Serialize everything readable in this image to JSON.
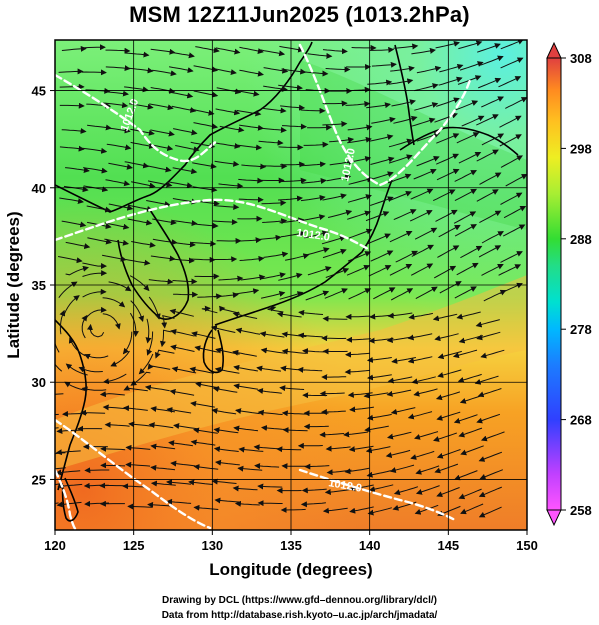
{
  "title": "MSM 12Z11Jun2025 (1013.2hPa)",
  "xlabel": "Longitude (degrees)",
  "ylabel": "Latitude  (degrees)",
  "credits": [
    "Drawing by DCL (https://www.gfd–dennou.org/library/dcl/)",
    "Data from http://database.rish.kyoto–u.ac.jp/arch/jmadata/"
  ],
  "contour_labels": [
    "1012.0",
    "1012.0",
    "1012.0",
    "1012.0"
  ],
  "chart_data": {
    "type": "heatmap",
    "title": "MSM 12Z11Jun2025 (1013.2hPa)",
    "xlabel": "Longitude (degrees)",
    "ylabel": "Latitude  (degrees)",
    "xlim": [
      120,
      150
    ],
    "ylim": [
      22.4,
      47.6
    ],
    "xticks": [
      120,
      125,
      130,
      135,
      140,
      145,
      150
    ],
    "yticks": [
      25,
      30,
      35,
      40,
      45
    ],
    "grid": true,
    "colorbar": {
      "min": 258,
      "max": 308,
      "ticks": [
        258,
        268,
        278,
        288,
        298,
        308
      ],
      "colors": [
        "#ff55ff",
        "#c040ff",
        "#5050ff",
        "#1c7cff",
        "#00b8ff",
        "#00e0d0",
        "#22dd88",
        "#33dd33",
        "#99ee33",
        "#eeee22",
        "#ffc020",
        "#ff9020",
        "#ff5a30",
        "#e04040"
      ]
    },
    "field_note_colors": {
      "north": "#5fe26f",
      "central": "#3fdc3f",
      "south": "#f59a1d",
      "southwest": "#ef6f1f",
      "far_south": "#e7782a"
    },
    "contour_color": "#ffffff",
    "vector_color": "#111111"
  }
}
